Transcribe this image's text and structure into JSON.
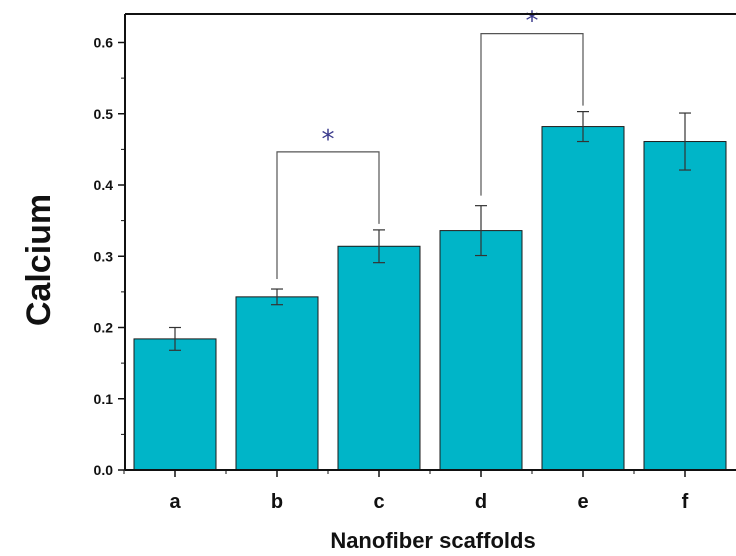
{
  "chart_data": {
    "type": "bar",
    "title": "",
    "xlabel": "Nanofiber scaffolds",
    "ylabel": "Calcium",
    "categories": [
      "a",
      "b",
      "c",
      "d",
      "e",
      "f"
    ],
    "values": [
      0.184,
      0.243,
      0.314,
      0.336,
      0.482,
      0.461
    ],
    "errors": [
      0.016,
      0.011,
      0.023,
      0.035,
      0.021,
      0.04
    ],
    "ylim": [
      0.0,
      0.64
    ],
    "yticks": [
      "0.0",
      "0.1",
      "0.2",
      "0.3",
      "0.4",
      "0.5",
      "0.6"
    ],
    "grid": false,
    "legend": "none",
    "bar_color": "#00B5C8",
    "significance": [
      {
        "from": "b",
        "to": "c",
        "label": "*"
      },
      {
        "from": "d",
        "to": "e",
        "label": "*"
      }
    ]
  }
}
